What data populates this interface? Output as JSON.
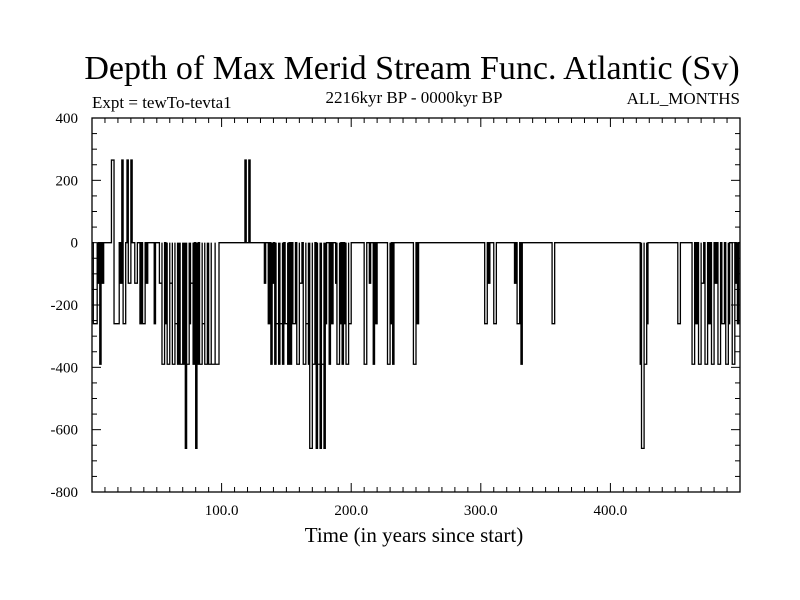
{
  "chart_data": {
    "type": "line",
    "title": "Depth of Max Merid Stream Func. Atlantic (Sv)",
    "experiment": "Expt = tewTo-tevta1",
    "period": "2216kyr BP - 0000kyr BP",
    "months": "ALL_MONTHS",
    "xlabel": "Time (in years since start)",
    "ylabel": "",
    "xlim": [
      0,
      500
    ],
    "ylim": [
      -800,
      400
    ],
    "x_ticks": [
      100,
      200,
      300,
      400
    ],
    "x_tick_labels": [
      "100.0",
      "200.0",
      "300.0",
      "400.0"
    ],
    "y_ticks": [
      400,
      200,
      0,
      -200,
      -400,
      -600,
      -800
    ],
    "y_tick_labels": [
      "400",
      "200",
      "0",
      "-200",
      "-400",
      "-600",
      "-800"
    ],
    "grid": false,
    "series": [
      {
        "name": "Depth of Max Merid Stream Func.",
        "events": [
          [
            1,
            4,
            -260
          ],
          [
            4,
            5,
            -130
          ],
          [
            6,
            7,
            -390
          ],
          [
            8,
            9,
            -130
          ],
          [
            15,
            17,
            265
          ],
          [
            17,
            21,
            -260
          ],
          [
            22,
            23,
            -130
          ],
          [
            23,
            24,
            265
          ],
          [
            24,
            26,
            -260
          ],
          [
            27,
            28,
            265
          ],
          [
            28,
            30,
            -130
          ],
          [
            30,
            31,
            265
          ],
          [
            33,
            35,
            -130
          ],
          [
            37,
            38,
            -260
          ],
          [
            39,
            41,
            -260
          ],
          [
            42,
            43,
            -130
          ],
          [
            48,
            49,
            -260
          ],
          [
            52,
            54,
            -130
          ],
          [
            54,
            56,
            -390
          ],
          [
            57,
            58,
            -260
          ],
          [
            58,
            60,
            -390
          ],
          [
            60,
            62,
            -130
          ],
          [
            62,
            64,
            -390
          ],
          [
            64,
            66,
            -260
          ],
          [
            66,
            67,
            -390
          ],
          [
            67,
            68,
            -130
          ],
          [
            68,
            70,
            -390
          ],
          [
            70,
            71,
            -260
          ],
          [
            71,
            72,
            -390
          ],
          [
            72,
            73,
            -660
          ],
          [
            73,
            75,
            -390
          ],
          [
            75,
            76,
            -260
          ],
          [
            76,
            78,
            -130
          ],
          [
            78,
            79,
            -390
          ],
          [
            80,
            81,
            -660
          ],
          [
            81,
            82,
            -390
          ],
          [
            83,
            85,
            -390
          ],
          [
            85,
            87,
            -260
          ],
          [
            87,
            89,
            -390
          ],
          [
            89,
            90,
            -130
          ],
          [
            90,
            92,
            -390
          ],
          [
            92,
            95,
            -390
          ],
          [
            95,
            98,
            -390
          ],
          [
            118,
            119,
            265
          ],
          [
            121,
            122,
            265
          ],
          [
            133,
            134,
            -130
          ],
          [
            136,
            137,
            -260
          ],
          [
            138,
            139,
            -390
          ],
          [
            139,
            140,
            -130
          ],
          [
            141,
            142,
            -390
          ],
          [
            142,
            144,
            -260
          ],
          [
            144,
            145,
            -390
          ],
          [
            145,
            147,
            -260
          ],
          [
            147,
            148,
            -390
          ],
          [
            149,
            151,
            -260
          ],
          [
            151,
            152,
            -390
          ],
          [
            153,
            154,
            -390
          ],
          [
            155,
            157,
            -260
          ],
          [
            158,
            160,
            -390
          ],
          [
            160,
            162,
            -130
          ],
          [
            163,
            165,
            -390
          ],
          [
            165,
            167,
            -260
          ],
          [
            167,
            168,
            -390
          ],
          [
            168,
            170,
            -660
          ],
          [
            170,
            172,
            -390
          ],
          [
            173,
            174,
            -660
          ],
          [
            174,
            176,
            -390
          ],
          [
            176,
            177,
            -660
          ],
          [
            177,
            179,
            -390
          ],
          [
            179,
            180,
            -660
          ],
          [
            180,
            181,
            -260
          ],
          [
            183,
            184,
            -390
          ],
          [
            185,
            186,
            -260
          ],
          [
            188,
            189,
            -130
          ],
          [
            189,
            191,
            -390
          ],
          [
            191,
            192,
            -260
          ],
          [
            193,
            194,
            -390
          ],
          [
            195,
            196,
            -260
          ],
          [
            196,
            198,
            -390
          ],
          [
            198,
            200,
            -260
          ],
          [
            210,
            212,
            -390
          ],
          [
            214,
            215,
            -130
          ],
          [
            217,
            218,
            -390
          ],
          [
            219,
            220,
            -260
          ],
          [
            228,
            230,
            -390
          ],
          [
            230,
            231,
            -260
          ],
          [
            232,
            233,
            -390
          ],
          [
            248,
            250,
            -390
          ],
          [
            251,
            252,
            -260
          ],
          [
            303,
            305,
            -260
          ],
          [
            306,
            307,
            -130
          ],
          [
            310,
            312,
            -260
          ],
          [
            326,
            327,
            -130
          ],
          [
            328,
            330,
            -260
          ],
          [
            331,
            332,
            -390
          ],
          [
            355,
            357,
            -260
          ],
          [
            423,
            424,
            -390
          ],
          [
            424,
            426,
            -660
          ],
          [
            426,
            428,
            -390
          ],
          [
            428,
            429,
            -260
          ],
          [
            452,
            454,
            -260
          ],
          [
            463,
            465,
            -390
          ],
          [
            466,
            467,
            -260
          ],
          [
            468,
            470,
            -390
          ],
          [
            470,
            472,
            -130
          ],
          [
            473,
            475,
            -390
          ],
          [
            476,
            477,
            -260
          ],
          [
            478,
            480,
            -390
          ],
          [
            481,
            482,
            -130
          ],
          [
            483,
            485,
            -390
          ],
          [
            486,
            488,
            -260
          ],
          [
            489,
            491,
            -390
          ],
          [
            491,
            492,
            -260
          ],
          [
            494,
            496,
            -390
          ],
          [
            497,
            498,
            -130
          ],
          [
            498,
            499,
            -260
          ]
        ]
      }
    ]
  }
}
